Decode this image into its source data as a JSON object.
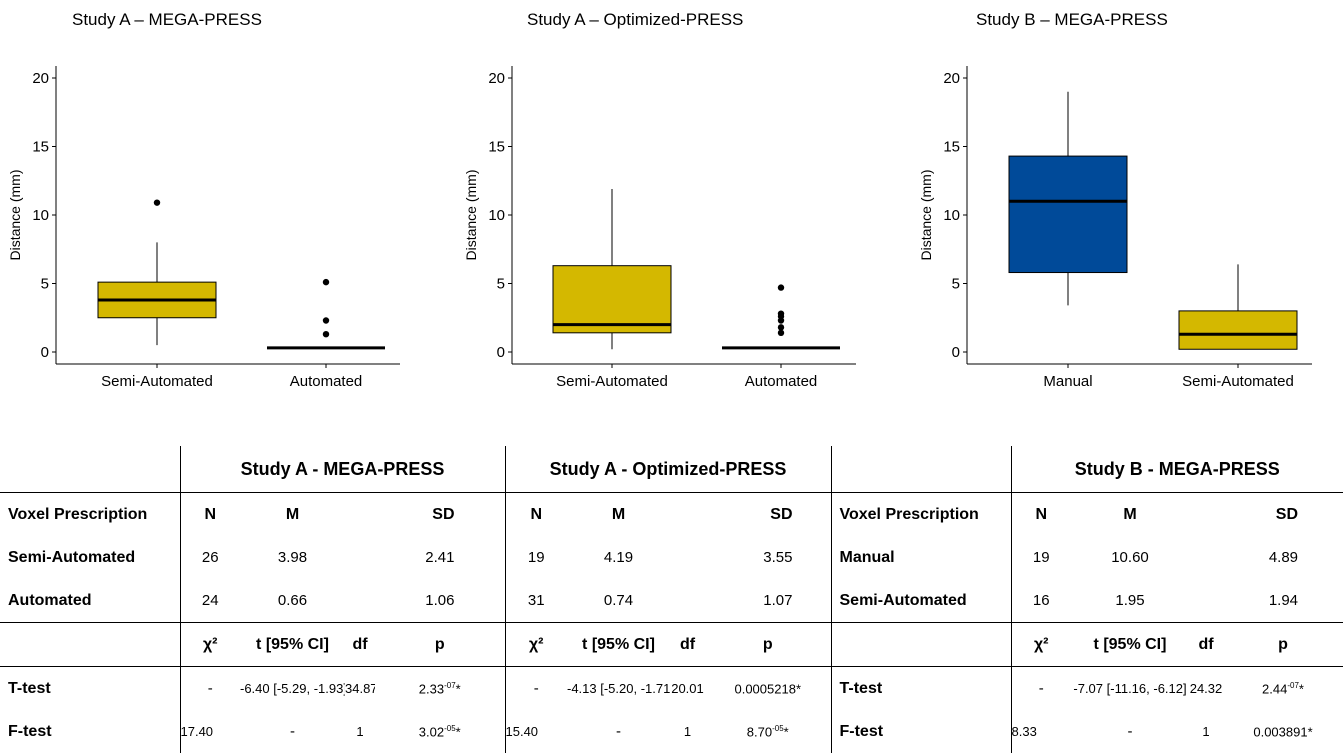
{
  "chart_data": [
    {
      "type": "box",
      "title": "Study A – MEGA-PRESS",
      "ylabel": "Distance (mm)",
      "ylim": [
        0,
        20
      ],
      "yticks": [
        0,
        5,
        10,
        15,
        20
      ],
      "categories": [
        "Semi-Automated",
        "Automated"
      ],
      "boxes": [
        {
          "name": "Semi-Automated",
          "whisker_low": 0.5,
          "q1": 2.5,
          "median": 3.8,
          "q3": 5.1,
          "whisker_high": 8.0,
          "outliers": [
            10.9
          ],
          "color": "#d4b800"
        },
        {
          "name": "Automated",
          "whisker_low": 0.3,
          "q1": 0.3,
          "median": 0.3,
          "q3": 0.3,
          "whisker_high": 0.3,
          "outliers": [
            1.3,
            2.3,
            5.1
          ],
          "color": "#d4b800"
        }
      ]
    },
    {
      "type": "box",
      "title": "Study A – Optimized-PRESS",
      "ylabel": "Distance (mm)",
      "ylim": [
        0,
        20
      ],
      "yticks": [
        0,
        5,
        10,
        15,
        20
      ],
      "categories": [
        "Semi-Automated",
        "Automated"
      ],
      "boxes": [
        {
          "name": "Semi-Automated",
          "whisker_low": 0.2,
          "q1": 1.4,
          "median": 2.0,
          "q3": 6.3,
          "whisker_high": 11.9,
          "outliers": [],
          "color": "#d4b800"
        },
        {
          "name": "Automated",
          "whisker_low": 0.3,
          "q1": 0.3,
          "median": 0.3,
          "q3": 0.3,
          "whisker_high": 0.3,
          "outliers": [
            1.4,
            1.8,
            2.3,
            2.6,
            2.8,
            4.7
          ],
          "color": "#d4b800"
        }
      ]
    },
    {
      "type": "box",
      "title": "Study B – MEGA-PRESS",
      "ylabel": "Distance (mm)",
      "ylim": [
        0,
        20
      ],
      "yticks": [
        0,
        5,
        10,
        15,
        20
      ],
      "categories": [
        "Manual",
        "Semi-Automated"
      ],
      "boxes": [
        {
          "name": "Manual",
          "whisker_low": 3.4,
          "q1": 5.8,
          "median": 11.0,
          "q3": 14.3,
          "whisker_high": 19.0,
          "outliers": [],
          "color": "#004a99"
        },
        {
          "name": "Semi-Automated",
          "whisker_low": 0.2,
          "q1": 0.2,
          "median": 1.3,
          "q3": 3.0,
          "whisker_high": 6.4,
          "outliers": [],
          "color": "#d4b800"
        }
      ]
    }
  ],
  "table": {
    "headers": [
      "Study A - MEGA-PRESS",
      "Study A - Optimized-PRESS",
      "Study B - MEGA-PRESS"
    ],
    "voxel_label": "Voxel Prescription",
    "cols_desc": [
      "N",
      "M",
      "SD"
    ],
    "cols_test": [
      "χ²",
      "t [95% CI]",
      "df",
      "p"
    ],
    "left_rows": [
      {
        "label": "Semi-Automated",
        "a": [
          "26",
          "3.98",
          "2.41"
        ],
        "b": [
          "19",
          "4.19",
          "3.55"
        ]
      },
      {
        "label": "Automated",
        "a": [
          "24",
          "0.66",
          "1.06"
        ],
        "b": [
          "31",
          "0.74",
          "1.07"
        ]
      }
    ],
    "right_rows": [
      {
        "label": "Manual",
        "c": [
          "19",
          "10.60",
          "4.89"
        ]
      },
      {
        "label": "Semi-Automated",
        "c": [
          "16",
          "1.95",
          "1.94"
        ]
      }
    ],
    "tests": [
      {
        "label": "T-test",
        "a": [
          "-",
          "-6.40 [-5.29, -1.93]",
          "34.87",
          "2.33",
          "-07",
          "*"
        ],
        "b": [
          "-",
          "-4.13 [-5.20, -1.71]",
          "20.01",
          "0.0005218",
          "",
          "*"
        ],
        "c": [
          "-",
          "-7.07 [-11.16, -6.12]",
          "24.32",
          "2.44",
          "-07",
          "*"
        ]
      },
      {
        "label": "F-test",
        "a": [
          "17.40",
          "-",
          "1",
          "3.02",
          "-05",
          "*"
        ],
        "b": [
          "15.40",
          "-",
          "1",
          "8.70",
          "-05",
          "*"
        ],
        "c": [
          "8.33",
          "-",
          "1",
          "0.003891",
          "",
          "*"
        ]
      }
    ]
  }
}
